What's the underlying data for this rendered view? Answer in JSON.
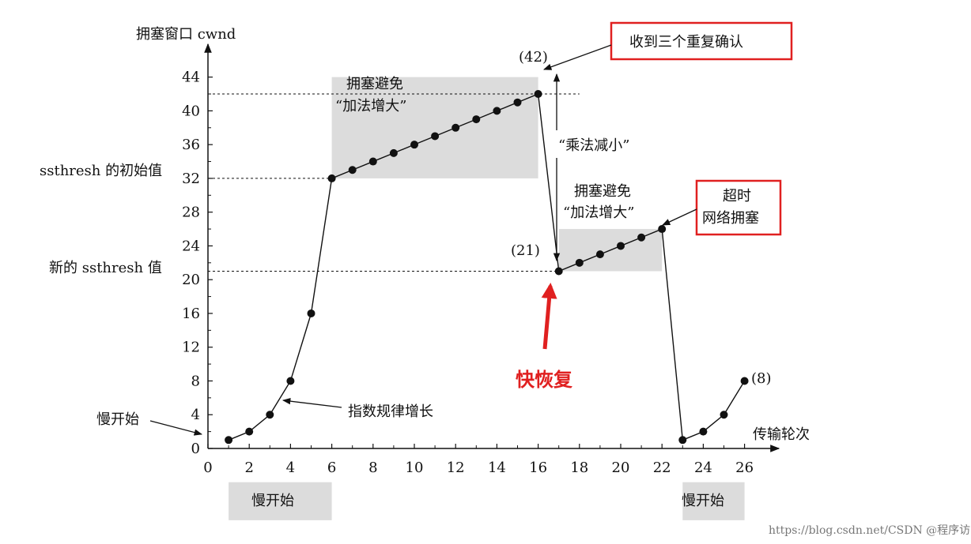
{
  "chart_data": {
    "type": "line",
    "ylabel": "拥塞窗口 cwnd",
    "xlabel": "传输轮次",
    "xlim": [
      0,
      27
    ],
    "ylim": [
      0,
      44
    ],
    "x_ticks": [
      0,
      2,
      4,
      6,
      8,
      10,
      12,
      14,
      16,
      18,
      20,
      22,
      24,
      26
    ],
    "y_ticks": [
      0,
      4,
      8,
      12,
      16,
      20,
      24,
      28,
      32,
      36,
      40,
      44
    ],
    "series": [
      {
        "x": [
          1,
          2,
          3,
          4,
          5,
          6,
          7,
          8,
          9,
          10,
          11,
          12,
          13,
          14,
          15,
          16,
          17,
          18,
          19,
          20,
          21,
          22,
          23,
          24,
          25,
          26
        ],
        "y": [
          1,
          2,
          4,
          8,
          16,
          32,
          33,
          34,
          35,
          36,
          37,
          38,
          39,
          40,
          41,
          42,
          21,
          22,
          23,
          24,
          25,
          26,
          1,
          2,
          4,
          8
        ]
      }
    ],
    "reference_lines": [
      {
        "y": 42,
        "x_from": 0,
        "x_to": 18
      },
      {
        "y": 32,
        "x_from": 0,
        "x_to": 6
      },
      {
        "y": 21,
        "x_from": 0,
        "x_to": 17
      }
    ],
    "shaded_regions": [
      {
        "x": [
          6,
          16
        ],
        "y": [
          32,
          44
        ]
      },
      {
        "x": [
          17,
          22
        ],
        "y": [
          21,
          26
        ]
      },
      {
        "x": [
          1,
          6
        ],
        "y": [
          -8.5,
          -4
        ]
      },
      {
        "x": [
          23,
          26
        ],
        "y": [
          -8.5,
          -4
        ]
      }
    ],
    "point_labels": {
      "p42": "(42)",
      "p21": "(21)",
      "p8": "(8)"
    },
    "annotations": {
      "ssthresh_initial": "ssthresh 的初始值",
      "ssthresh_new": "新的 ssthresh 值",
      "slow_start_left": "慢开始",
      "exp_growth": "指数规律增长",
      "ca1_line1": "拥塞避免",
      "ca1_line2": "“加法增大”",
      "mult_decrease": "“乘法减小”",
      "ca2_line1": "拥塞避免",
      "ca2_line2": "“加法增大”",
      "triple_ack": "收到三个重复确认",
      "timeout_line1": "超时",
      "timeout_line2": "网络拥塞",
      "fast_recovery": "快恢复",
      "slow_start_box1": "慢开始",
      "slow_start_box2": "慢开始"
    },
    "colors": {
      "line": "#111111",
      "shade": "#dcdcdc",
      "red": "#e02020"
    }
  },
  "watermark": "https://blog.csdn.net/CSDN @程序访问度"
}
